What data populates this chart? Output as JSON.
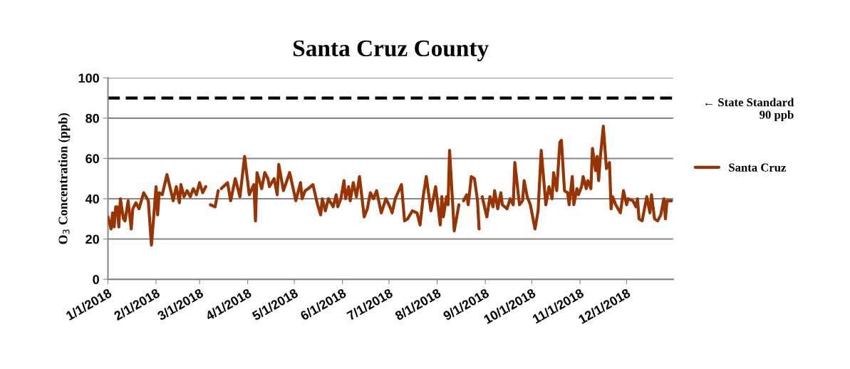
{
  "chart_data": {
    "type": "line",
    "title": "Santa Cruz County",
    "ylabel": "O$_{3}$ Concentration (ppb)",
    "x": [
      "2018-01-01",
      "2018-01-03",
      "2018-01-04",
      "2018-01-05",
      "2018-01-06",
      "2018-01-07",
      "2018-01-08",
      "2018-01-09",
      "2018-01-11",
      "2018-01-12",
      "2018-01-14",
      "2018-01-16",
      "2018-01-17",
      "2018-01-19",
      "2018-01-21",
      "2018-01-24",
      "2018-01-27",
      "2018-01-29",
      "2018-02-01",
      "2018-02-02",
      "2018-02-03",
      "2018-02-05",
      "2018-02-08",
      "2018-02-12",
      "2018-02-14",
      "2018-02-16",
      "2018-02-17",
      "2018-02-19",
      "2018-02-21",
      "2018-02-23",
      "2018-02-25",
      "2018-02-27",
      "2018-03-01",
      "2018-03-03",
      "2018-03-05",
      "2018-03-06",
      "2018-03-08",
      "2018-03-11",
      "2018-03-13",
      "2018-03-14",
      "2018-03-15",
      "2018-03-19",
      "2018-03-21",
      "2018-03-24",
      "2018-03-27",
      "2018-03-30",
      "2018-04-02",
      "2018-04-05",
      "2018-04-06",
      "2018-04-07",
      "2018-04-10",
      "2018-04-12",
      "2018-04-14",
      "2018-04-15",
      "2018-04-18",
      "2018-04-20",
      "2018-04-21",
      "2018-04-24",
      "2018-04-28",
      "2018-04-30",
      "2018-05-02",
      "2018-05-05",
      "2018-05-06",
      "2018-05-08",
      "2018-05-10",
      "2018-05-13",
      "2018-05-16",
      "2018-05-18",
      "2018-05-19",
      "2018-05-21",
      "2018-05-23",
      "2018-05-26",
      "2018-05-28",
      "2018-05-29",
      "2018-05-31",
      "2018-06-02",
      "2018-06-03",
      "2018-06-05",
      "2018-06-06",
      "2018-06-08",
      "2018-06-10",
      "2018-06-12",
      "2018-06-15",
      "2018-06-17",
      "2018-06-19",
      "2018-06-21",
      "2018-06-23",
      "2018-06-26",
      "2018-06-29",
      "2018-07-01",
      "2018-07-03",
      "2018-07-05",
      "2018-07-09",
      "2018-07-11",
      "2018-07-13",
      "2018-07-16",
      "2018-07-19",
      "2018-07-21",
      "2018-07-23",
      "2018-07-25",
      "2018-07-28",
      "2018-07-31",
      "2018-08-03",
      "2018-08-04",
      "2018-08-05",
      "2018-08-07",
      "2018-08-08",
      "2018-08-09",
      "2018-08-12",
      "2018-08-15",
      "2018-08-16",
      "2018-08-18",
      "2018-08-20",
      "2018-08-21",
      "2018-08-23",
      "2018-08-25",
      "2018-08-27",
      "2018-08-28",
      "2018-08-29",
      "2018-08-30",
      "2018-09-02",
      "2018-09-04",
      "2018-09-06",
      "2018-09-07",
      "2018-09-09",
      "2018-09-11",
      "2018-09-12",
      "2018-09-15",
      "2018-09-17",
      "2018-09-19",
      "2018-09-20",
      "2018-09-23",
      "2018-09-25",
      "2018-09-26",
      "2018-09-28",
      "2018-09-30",
      "2018-10-03",
      "2018-10-05",
      "2018-10-07",
      "2018-10-10",
      "2018-10-12",
      "2018-10-14",
      "2018-10-15",
      "2018-10-17",
      "2018-10-19",
      "2018-10-20",
      "2018-10-22",
      "2018-10-24",
      "2018-10-25",
      "2018-10-27",
      "2018-10-28",
      "2018-10-30",
      "2018-10-31",
      "2018-11-02",
      "2018-11-03",
      "2018-11-05",
      "2018-11-06",
      "2018-11-08",
      "2018-11-09",
      "2018-11-11",
      "2018-11-12",
      "2018-11-13",
      "2018-11-14",
      "2018-11-16",
      "2018-11-18",
      "2018-11-20",
      "2018-11-21",
      "2018-11-22",
      "2018-11-24",
      "2018-11-27",
      "2018-11-29",
      "2018-12-01",
      "2018-12-02",
      "2018-12-05",
      "2018-12-07",
      "2018-12-08",
      "2018-12-09",
      "2018-12-11",
      "2018-12-14",
      "2018-12-16",
      "2018-12-17",
      "2018-12-19",
      "2018-12-21",
      "2018-12-23",
      "2018-12-25",
      "2018-12-26",
      "2018-12-27",
      "2018-12-30"
    ],
    "series": [
      {
        "name": "Santa Cruz",
        "color": "#993300",
        "values": [
          31,
          25,
          33,
          26,
          36,
          36,
          26,
          40,
          30,
          29,
          39,
          25,
          35,
          38,
          35,
          43,
          39,
          17,
          46,
          32,
          43,
          42,
          52,
          39,
          46,
          38,
          47,
          41,
          44,
          41,
          45,
          42,
          48,
          43,
          46,
          null,
          37,
          36,
          44,
          null,
          45,
          48,
          39,
          50,
          41,
          61,
          42,
          47,
          29,
          53,
          45,
          53,
          50,
          46,
          50,
          42,
          57,
          44,
          53,
          46,
          39,
          48,
          40,
          44,
          45,
          47,
          37,
          32,
          40,
          34,
          40,
          36,
          42,
          36,
          40,
          49,
          40,
          46,
          39,
          48,
          41,
          51,
          31,
          35,
          43,
          40,
          44,
          33,
          40,
          37,
          33,
          40,
          47,
          29,
          30,
          34,
          33,
          27,
          41,
          51,
          34,
          46,
          27,
          41,
          31,
          41,
          37,
          64,
          24,
          37,
          null,
          39,
          42,
          37,
          51,
          50,
          39,
          25,
          null,
          41,
          31,
          41,
          36,
          44,
          35,
          43,
          37,
          35,
          40,
          37,
          58,
          37,
          39,
          49,
          41,
          37,
          25,
          34,
          64,
          37,
          46,
          40,
          53,
          44,
          68,
          69,
          44,
          43,
          37,
          51,
          37,
          45,
          42,
          46,
          51,
          45,
          49,
          45,
          65,
          54,
          61,
          49,
          60,
          76,
          55,
          58,
          35,
          41,
          37,
          33,
          44,
          37,
          40,
          39,
          36,
          40,
          30,
          29,
          41,
          33,
          42,
          30,
          29,
          32,
          40,
          30,
          39,
          39
        ]
      }
    ],
    "xlim": [
      "2018-01-01",
      "2018-12-31"
    ],
    "xticks": [
      {
        "value": "2018-01-01",
        "label": "1/1/2018"
      },
      {
        "value": "2018-02-01",
        "label": "2/1/2018"
      },
      {
        "value": "2018-03-01",
        "label": "3/1/2018"
      },
      {
        "value": "2018-04-01",
        "label": "4/1/2018"
      },
      {
        "value": "2018-05-01",
        "label": "5/1/2018"
      },
      {
        "value": "2018-06-01",
        "label": "6/1/2018"
      },
      {
        "value": "2018-07-01",
        "label": "7/1/2018"
      },
      {
        "value": "2018-08-01",
        "label": "8/1/2018"
      },
      {
        "value": "2018-09-01",
        "label": "9/1/2018"
      },
      {
        "value": "2018-10-01",
        "label": "10/1/2018"
      },
      {
        "value": "2018-11-01",
        "label": "11/1/2018"
      },
      {
        "value": "2018-12-01",
        "label": "12/1/2018"
      }
    ],
    "ylim": [
      0,
      100
    ],
    "yticks": [
      0,
      20,
      40,
      60,
      80,
      100
    ],
    "grid": "y",
    "legend": "right",
    "line_style": "solid",
    "ref_lines": [
      {
        "axis": "y",
        "value": 90,
        "label": "← State Standard\n90 ppb",
        "color": "#000000",
        "line_style": "dashed"
      }
    ]
  }
}
